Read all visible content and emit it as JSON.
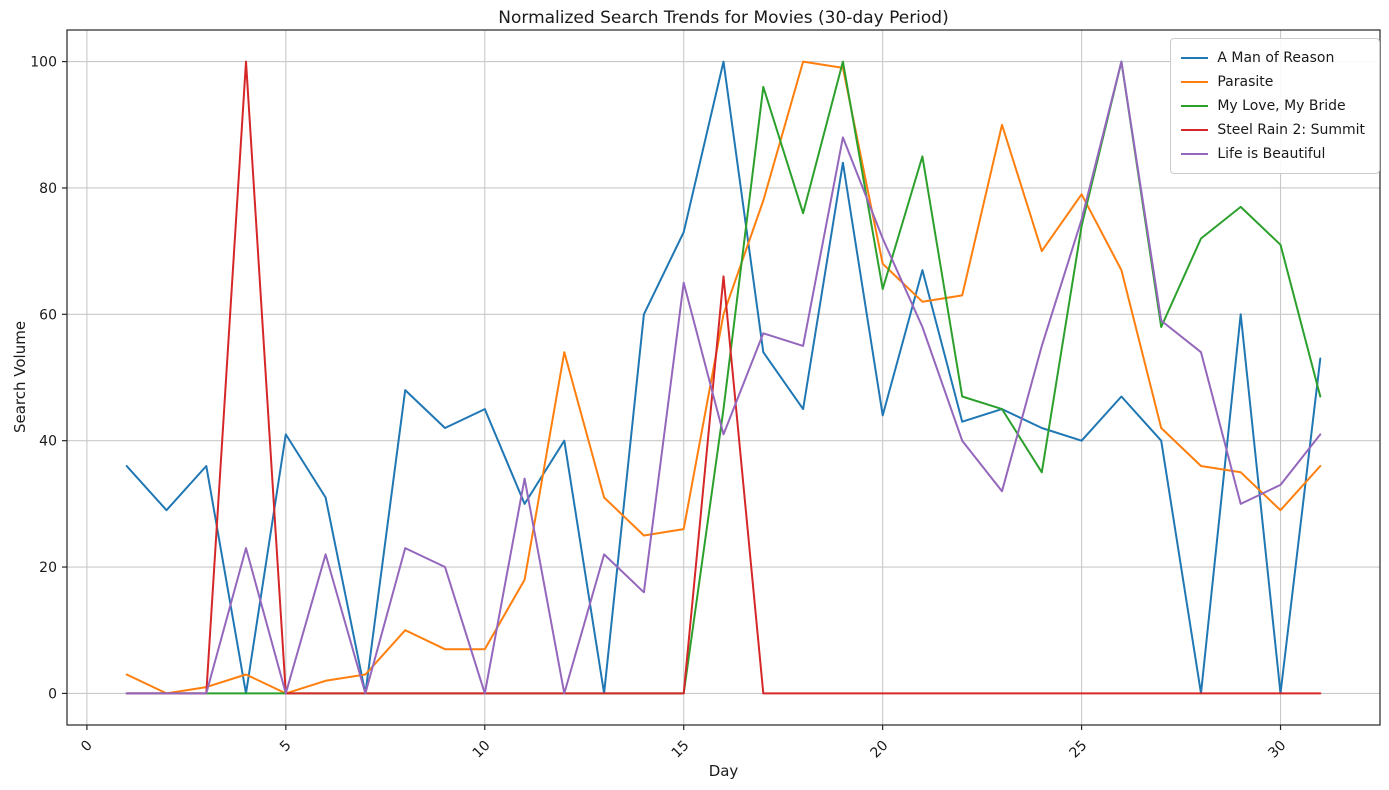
{
  "chart_data": {
    "type": "line",
    "title": "Normalized Search Trends for Movies (30-day Period)",
    "xlabel": "Day",
    "ylabel": "Search Volume",
    "x": [
      1,
      2,
      3,
      4,
      5,
      6,
      7,
      8,
      9,
      10,
      11,
      12,
      13,
      14,
      15,
      16,
      17,
      18,
      19,
      20,
      21,
      22,
      23,
      24,
      25,
      26,
      27,
      28,
      29,
      30,
      31
    ],
    "series": [
      {
        "name": "A Man of Reason",
        "color": "#1f77b4",
        "values": [
          36,
          29,
          36,
          0,
          41,
          31,
          0,
          48,
          42,
          45,
          30,
          40,
          0,
          60,
          73,
          100,
          54,
          45,
          84,
          44,
          67,
          43,
          45,
          42,
          40,
          47,
          40,
          0,
          60,
          0,
          53
        ]
      },
      {
        "name": "Parasite",
        "color": "#ff7f0e",
        "values": [
          3,
          0,
          1,
          3,
          0,
          2,
          3,
          10,
          7,
          7,
          18,
          54,
          31,
          25,
          26,
          60,
          78,
          100,
          99,
          68,
          62,
          63,
          90,
          70,
          79,
          67,
          42,
          36,
          35,
          29,
          36
        ]
      },
      {
        "name": "My Love, My Bride",
        "color": "#2ca02c",
        "values": [
          0,
          0,
          0,
          0,
          0,
          0,
          0,
          0,
          0,
          0,
          0,
          0,
          0,
          0,
          0,
          45,
          96,
          76,
          100,
          64,
          85,
          47,
          45,
          35,
          74,
          100,
          58,
          72,
          77,
          71,
          47
        ]
      },
      {
        "name": "Steel Rain 2: Summit",
        "color": "#d62728",
        "values": [
          0,
          0,
          0,
          100,
          0,
          0,
          0,
          0,
          0,
          0,
          0,
          0,
          0,
          0,
          0,
          66,
          0,
          0,
          0,
          0,
          0,
          0,
          0,
          0,
          0,
          0,
          0,
          0,
          0,
          0,
          0
        ]
      },
      {
        "name": "Life is Beautiful",
        "color": "#9467bd",
        "values": [
          0,
          0,
          0,
          23,
          0,
          22,
          0,
          23,
          20,
          0,
          34,
          0,
          22,
          16,
          65,
          41,
          57,
          55,
          88,
          72,
          58,
          40,
          32,
          55,
          75,
          100,
          59,
          54,
          30,
          33,
          41
        ]
      }
    ],
    "xticks": [
      0,
      5,
      10,
      15,
      20,
      25,
      30
    ],
    "yticks": [
      0,
      20,
      40,
      60,
      80,
      100
    ],
    "xlim": [
      -0.5,
      32.5
    ],
    "ylim": [
      -5,
      105
    ],
    "grid": true,
    "legend_position": "upper right",
    "x_tick_rotation_deg": 45,
    "grid_color": "#c9c9c9",
    "spine_color": "#262626",
    "text_color": "#1a1a1a",
    "background_color": "#ffffff"
  }
}
